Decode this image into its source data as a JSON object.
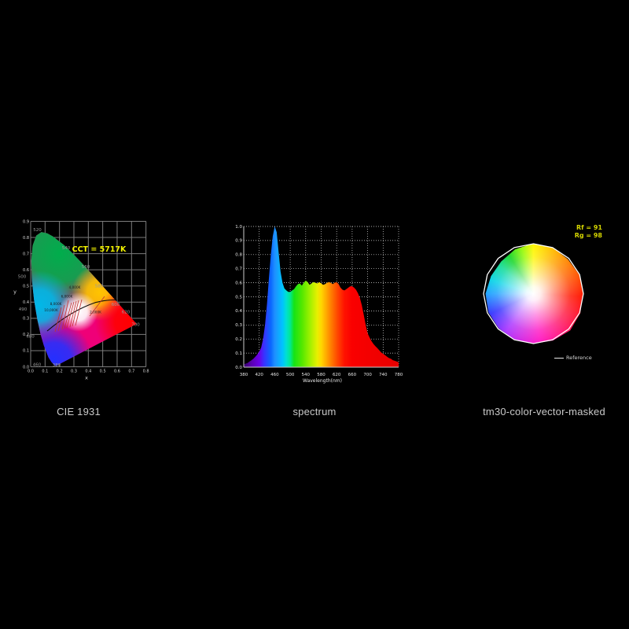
{
  "captions": {
    "cie": "CIE 1931",
    "spectrum": "spectrum",
    "tm30": "tm30-color-vector-masked"
  },
  "colors": {
    "background": "#000000",
    "cct_text": "#f2f200",
    "rf_rg_text": "#d6d600",
    "caption_text": "#c9c9c9",
    "grid_cie": "#7d7d7d",
    "grid_spectrum": "#e0e0e0",
    "iso_cct_lines": "#c23333",
    "planckian_curve": "#0a0a0a",
    "reference_outline": "#ffffff"
  },
  "chart_data": [
    {
      "id": "cie1931",
      "type": "scatter",
      "subtype": "chromaticity-diagram",
      "title": "CIE 1931",
      "xlabel": "x",
      "ylabel": "y",
      "xlim": [
        0.0,
        0.8
      ],
      "ylim": [
        0.0,
        0.9
      ],
      "grid": true,
      "x_ticks": [
        "0.0",
        "0.1",
        "0.2",
        "0.3",
        "0.4",
        "0.5",
        "0.6",
        "0.7",
        "0.8"
      ],
      "y_ticks": [
        "0.0",
        "0.1",
        "0.2",
        "0.3",
        "0.4",
        "0.5",
        "0.6",
        "0.7",
        "0.8",
        "0.9"
      ],
      "cct_annotation": "CCT = 5717K",
      "cct_value_k": 5717,
      "locus_wavelength_labels": [
        "520",
        "540",
        "560",
        "580",
        "600",
        "620",
        "700",
        "500",
        "490",
        "480",
        "460",
        "380"
      ],
      "planckian_labels": [
        "4,000K",
        "6,000K",
        "8,000K",
        "10,000K",
        "2,000K"
      ],
      "spectral_locus_xy": [
        [
          0.1741,
          0.005
        ],
        [
          0.174,
          0.0049
        ],
        [
          0.1726,
          0.0048
        ],
        [
          0.1714,
          0.0051
        ],
        [
          0.1689,
          0.0086
        ],
        [
          0.1644,
          0.0109
        ],
        [
          0.1566,
          0.0177
        ],
        [
          0.144,
          0.0297
        ],
        [
          0.1241,
          0.0578
        ],
        [
          0.0913,
          0.1327
        ],
        [
          0.0687,
          0.2007
        ],
        [
          0.0454,
          0.295
        ],
        [
          0.0235,
          0.4127
        ],
        [
          0.0082,
          0.5384
        ],
        [
          0.0039,
          0.6548
        ],
        [
          0.0139,
          0.7502
        ],
        [
          0.0389,
          0.812
        ],
        [
          0.0743,
          0.8338
        ],
        [
          0.1142,
          0.8262
        ],
        [
          0.1547,
          0.8059
        ],
        [
          0.1896,
          0.7816
        ],
        [
          0.2296,
          0.7543
        ],
        [
          0.2658,
          0.7243
        ],
        [
          0.3016,
          0.6923
        ],
        [
          0.3373,
          0.6589
        ],
        [
          0.3731,
          0.6245
        ],
        [
          0.4087,
          0.5896
        ],
        [
          0.4441,
          0.5547
        ],
        [
          0.4788,
          0.5202
        ],
        [
          0.5125,
          0.4866
        ],
        [
          0.5448,
          0.4544
        ],
        [
          0.5752,
          0.4242
        ],
        [
          0.6029,
          0.3965
        ],
        [
          0.627,
          0.3725
        ],
        [
          0.6482,
          0.3514
        ],
        [
          0.6658,
          0.334
        ],
        [
          0.6801,
          0.3197
        ],
        [
          0.6915,
          0.3083
        ],
        [
          0.7079,
          0.292
        ],
        [
          0.719,
          0.2809
        ],
        [
          0.726,
          0.274
        ],
        [
          0.73,
          0.27
        ],
        [
          0.732,
          0.268
        ],
        [
          0.7334,
          0.2666
        ],
        [
          0.7344,
          0.2656
        ],
        [
          0.7347,
          0.2653
        ]
      ]
    },
    {
      "id": "spectrum",
      "type": "area",
      "title": "spectrum",
      "xlabel": "Wavelength(nm)",
      "ylabel": "",
      "xlim": [
        380,
        780
      ],
      "ylim": [
        0.0,
        1.0
      ],
      "grid": true,
      "x_ticks": [
        "380",
        "420",
        "460",
        "500",
        "540",
        "580",
        "620",
        "660",
        "700",
        "740",
        "780"
      ],
      "y_ticks": [
        "0.0",
        "0.1",
        "0.2",
        "0.3",
        "0.4",
        "0.5",
        "0.6",
        "0.7",
        "0.8",
        "0.9",
        "1.0"
      ],
      "x_start_nm": 380,
      "x_step_nm": 5,
      "values": [
        0.02,
        0.025,
        0.03,
        0.04,
        0.05,
        0.06,
        0.075,
        0.09,
        0.11,
        0.14,
        0.2,
        0.3,
        0.45,
        0.63,
        0.8,
        0.93,
        1.0,
        0.96,
        0.82,
        0.68,
        0.6,
        0.56,
        0.545,
        0.535,
        0.535,
        0.545,
        0.555,
        0.575,
        0.59,
        0.595,
        0.58,
        0.6,
        0.615,
        0.605,
        0.585,
        0.595,
        0.605,
        0.6,
        0.595,
        0.605,
        0.595,
        0.585,
        0.59,
        0.6,
        0.605,
        0.6,
        0.59,
        0.6,
        0.605,
        0.59,
        0.565,
        0.55,
        0.545,
        0.555,
        0.565,
        0.575,
        0.575,
        0.565,
        0.55,
        0.525,
        0.49,
        0.44,
        0.37,
        0.3,
        0.24,
        0.21,
        0.185,
        0.165,
        0.15,
        0.135,
        0.12,
        0.105,
        0.095,
        0.085,
        0.075,
        0.065,
        0.06,
        0.05,
        0.045,
        0.04,
        0.035
      ]
    },
    {
      "id": "tm30",
      "type": "area",
      "subtype": "color-vector-graphic",
      "title": "tm30-color-vector-masked",
      "rf_label": "Rf = 91",
      "rg_label": "Rg = 98",
      "rf": 91,
      "rg": 98,
      "legend": [
        {
          "label": "Reference"
        }
      ],
      "hue_bin_angles_deg": [
        0,
        22.5,
        45,
        67.5,
        90,
        112.5,
        135,
        157.5,
        180,
        202.5,
        225,
        247.5,
        270,
        292.5,
        315,
        337.5
      ],
      "test_radii_pct_of_reference": [
        99.2,
        99.2,
        97.6,
        100,
        100.8,
        96.1,
        91.3,
        92.1,
        96.1,
        97.6,
        98.4,
        99.2,
        100,
        101.6,
        103.9,
        101.6
      ]
    }
  ]
}
